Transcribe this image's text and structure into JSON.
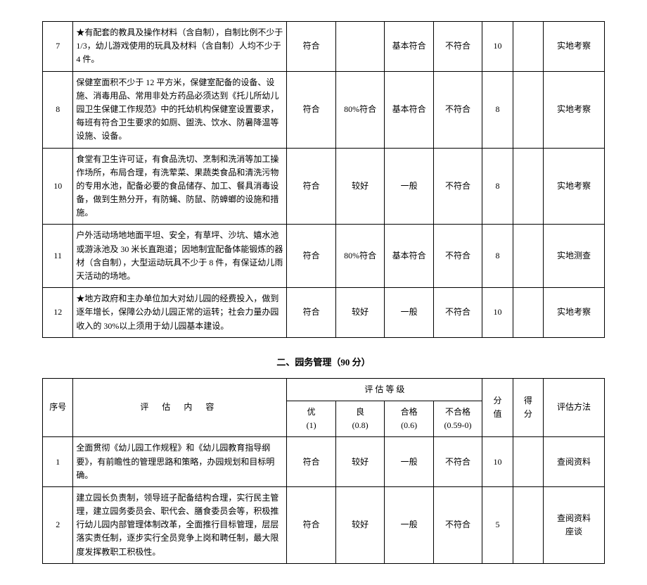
{
  "table1": {
    "rows": [
      {
        "idx": "7",
        "content": "★有配套的教具及操作材料（含自制），自制比例不少于 1/3，幼儿游戏使用的玩具及材料（含自制）人均不少于 4 件。",
        "g1": "符合",
        "g2": "",
        "g3": "基本符合",
        "g4": "不符合",
        "score": "10",
        "got": "",
        "method": "实地考察"
      },
      {
        "idx": "8",
        "content": "保健室面积不少于 12 平方米，保健室配备的设备、设施、消毒用品、常用非处方药品必须达到《托儿所幼儿园卫生保健工作规范》中的托幼机构保健室设置要求，每班有符合卫生要求的如厕、盥洗、饮水、防暑降温等设施、设备。",
        "g1": "符合",
        "g2": "80%符合",
        "g3": "基本符合",
        "g4": "不符合",
        "score": "8",
        "got": "",
        "method": "实地考察"
      },
      {
        "idx": "10",
        "content": "食堂有卫生许可证，有食品洗切、烹制和洗消等加工操作场所，布局合理，有洗荤菜、果蔬类食品和清洗污物的专用水池，配备必要的食品储存、加工、餐具消毒设备，做到生熟分开，有防蝇、防鼠、防蟑螂的设施和措施。",
        "g1": "符合",
        "g2": "较好",
        "g3": "一般",
        "g4": "不符合",
        "score": "8",
        "got": "",
        "method": "实地考察"
      },
      {
        "idx": "11",
        "content": "户外活动场地地面平坦、安全，有草坪、沙坑、嬉水池或游泳池及 30 米长直跑道；因地制宜配备体能锻炼的器材（含自制），大型运动玩具不少于 8 件，有保证幼儿雨天活动的场地。",
        "g1": "符合",
        "g2": "80%符合",
        "g3": "基本符合",
        "g4": "不符合",
        "score": "8",
        "got": "",
        "method": "实地测查"
      },
      {
        "idx": "12",
        "content": "★地方政府和主办单位加大对幼儿园的经费投入，做到逐年增长，保障公办幼儿园正常的运转；社会力量办园收入的 30%以上须用于幼儿园基本建设。",
        "g1": "符合",
        "g2": "较好",
        "g3": "一般",
        "g4": "不符合",
        "score": "10",
        "got": "",
        "method": "实地考察"
      }
    ]
  },
  "section2": {
    "title": "二、园务管理（90 分）"
  },
  "table2": {
    "headers": {
      "idx": "序号",
      "content": "评 估 内 容",
      "grades": "评 估 等 级",
      "g1": "优",
      "g1s": "(1)",
      "g2": "良",
      "g2s": "(0.8)",
      "g3": "合格",
      "g3s": "(0.6)",
      "g4": "不合格",
      "g4s": "(0.59-0)",
      "score": "分",
      "score2": "值",
      "got": "得",
      "got2": "分",
      "method": "评估方法"
    },
    "rows": [
      {
        "idx": "1",
        "content": "全面贯彻《幼儿园工作规程》和《幼儿园教育指导纲要》，有前瞻性的管理思路和策略，办园规划和目标明确。",
        "g1": "符合",
        "g2": "较好",
        "g3": "一般",
        "g4": "不符合",
        "score": "10",
        "got": "",
        "method": "查阅资料"
      },
      {
        "idx": "2",
        "content": "建立园长负责制，领导班子配备结构合理，实行民主管理，建立园务委员会、职代会、膳食委员会等，积极推行幼儿园内部管理体制改革，全面推行目标管理，层层落实责任制，逐步实行全员竞争上岗和聘任制，最大限度发挥教职工积极性。",
        "g1": "符合",
        "g2": "较好",
        "g3": "一般",
        "g4": "不符合",
        "score": "5",
        "got": "",
        "method": "查阅资料\n座谈"
      }
    ]
  }
}
